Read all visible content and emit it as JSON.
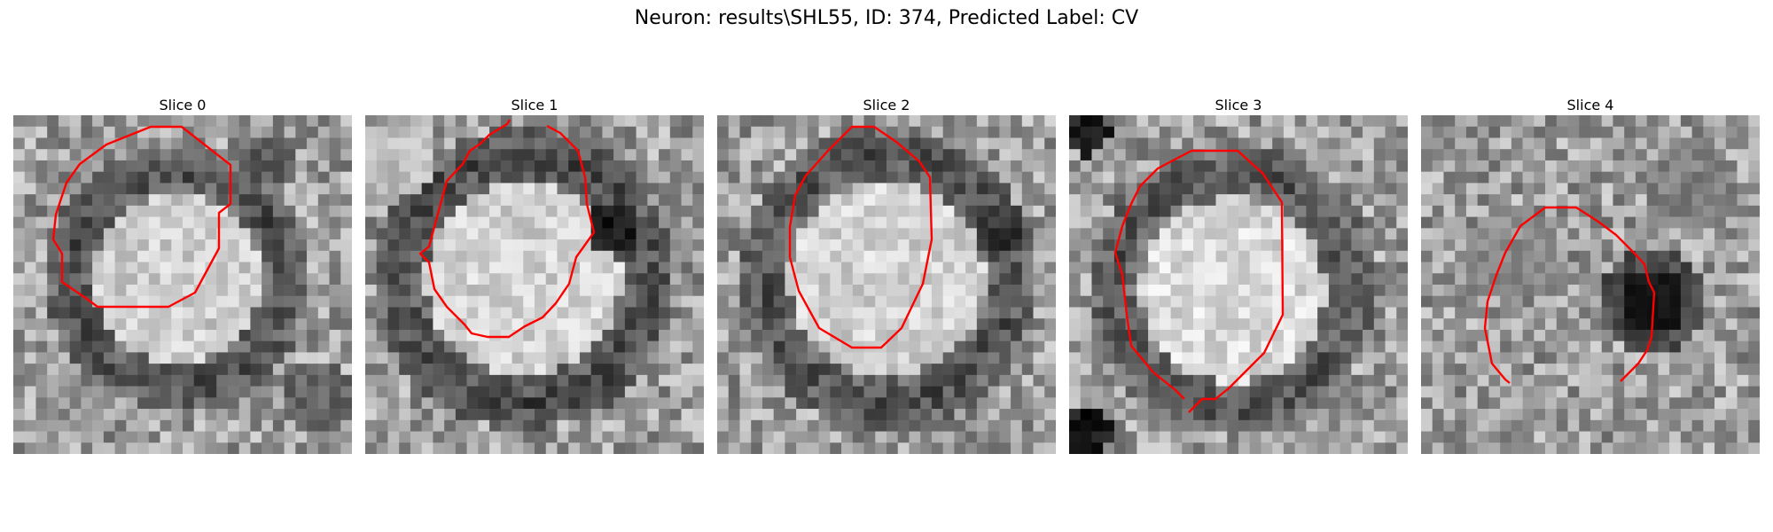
{
  "figure": {
    "title": "Neuron: results\\SHL55, ID: 374, Predicted Label: CV",
    "contour_color": "#ff0000"
  },
  "slices": [
    {
      "label": "Slice 0"
    },
    {
      "label": "Slice 1"
    },
    {
      "label": "Slice 2"
    },
    {
      "label": "Slice 3"
    },
    {
      "label": "Slice 4"
    }
  ]
}
